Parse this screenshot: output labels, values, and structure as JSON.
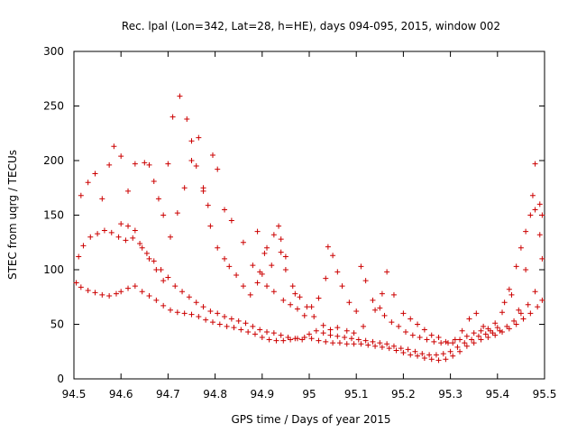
{
  "chart_data": {
    "type": "scatter",
    "title": "Rec. lpal (Lon=342, Lat=28, h=HE), days 094-095, 2015, window 002",
    "xlabel": "GPS time / Days of year 2015",
    "ylabel": "STEC from uqrg / TECUs",
    "xlim": [
      94.5,
      95.5
    ],
    "ylim": [
      0,
      300
    ],
    "xticks": [
      94.5,
      94.6,
      94.7,
      94.8,
      94.9,
      95,
      95.1,
      95.2,
      95.3,
      95.4,
      95.5
    ],
    "xtick_labels": [
      "94.5",
      "94.6",
      "94.7",
      "94.8",
      "94.9",
      "95",
      "95.1",
      "95.2",
      "95.3",
      "95.4",
      "95.5"
    ],
    "yticks": [
      0,
      50,
      100,
      150,
      200,
      250,
      300
    ],
    "ytick_labels": [
      "0",
      "50",
      "100",
      "150",
      "200",
      "250",
      "300"
    ],
    "grid": false,
    "legend": "none",
    "marker": "+",
    "color": "#cc0000",
    "series": [
      {
        "name": "",
        "points": [
          [
            94.505,
            88
          ],
          [
            94.515,
            84
          ],
          [
            94.53,
            81
          ],
          [
            94.545,
            79
          ],
          [
            94.56,
            77
          ],
          [
            94.575,
            76
          ],
          [
            94.59,
            78
          ],
          [
            94.6,
            80
          ],
          [
            94.615,
            83
          ],
          [
            94.63,
            85
          ],
          [
            94.645,
            80
          ],
          [
            94.66,
            76
          ],
          [
            94.675,
            72
          ],
          [
            94.69,
            67
          ],
          [
            94.705,
            63
          ],
          [
            94.72,
            61
          ],
          [
            94.735,
            60
          ],
          [
            94.75,
            59
          ],
          [
            94.765,
            57
          ],
          [
            94.78,
            54
          ],
          [
            94.795,
            52
          ],
          [
            94.81,
            50
          ],
          [
            94.825,
            48
          ],
          [
            94.84,
            47
          ],
          [
            94.855,
            45
          ],
          [
            94.87,
            43
          ],
          [
            94.885,
            41
          ],
          [
            94.9,
            38
          ],
          [
            94.915,
            36
          ],
          [
            94.93,
            35
          ],
          [
            94.945,
            35
          ],
          [
            94.96,
            36
          ],
          [
            94.975,
            37
          ],
          [
            94.99,
            38
          ],
          [
            95.005,
            37
          ],
          [
            95.02,
            35
          ],
          [
            95.035,
            34
          ],
          [
            95.05,
            33
          ],
          [
            95.065,
            33
          ],
          [
            95.08,
            32
          ],
          [
            95.095,
            32
          ],
          [
            95.11,
            32
          ],
          [
            95.125,
            31
          ],
          [
            95.14,
            30
          ],
          [
            95.155,
            29
          ],
          [
            95.17,
            28
          ],
          [
            95.185,
            26
          ],
          [
            95.2,
            24
          ],
          [
            95.215,
            22
          ],
          [
            95.23,
            21
          ],
          [
            95.245,
            19
          ],
          [
            95.26,
            18
          ],
          [
            95.275,
            17
          ],
          [
            95.29,
            18
          ],
          [
            95.305,
            21
          ],
          [
            95.32,
            25
          ],
          [
            95.335,
            30
          ],
          [
            95.35,
            33
          ],
          [
            95.365,
            36
          ],
          [
            95.38,
            38
          ],
          [
            95.395,
            40
          ],
          [
            95.41,
            43
          ],
          [
            95.425,
            46
          ],
          [
            95.44,
            50
          ],
          [
            95.455,
            55
          ],
          [
            95.47,
            60
          ],
          [
            95.485,
            66
          ],
          [
            95.495,
            72
          ],
          [
            94.51,
            112
          ],
          [
            94.52,
            122
          ],
          [
            94.535,
            130
          ],
          [
            94.55,
            133
          ],
          [
            94.565,
            136
          ],
          [
            94.58,
            134
          ],
          [
            94.595,
            130
          ],
          [
            94.61,
            127
          ],
          [
            94.625,
            129
          ],
          [
            94.64,
            124
          ],
          [
            94.655,
            115
          ],
          [
            94.67,
            108
          ],
          [
            94.685,
            100
          ],
          [
            94.7,
            93
          ],
          [
            94.715,
            85
          ],
          [
            94.73,
            80
          ],
          [
            94.745,
            75
          ],
          [
            94.76,
            70
          ],
          [
            94.775,
            66
          ],
          [
            94.79,
            62
          ],
          [
            94.805,
            60
          ],
          [
            94.82,
            57
          ],
          [
            94.835,
            55
          ],
          [
            94.85,
            53
          ],
          [
            94.865,
            51
          ],
          [
            94.88,
            48
          ],
          [
            94.895,
            45
          ],
          [
            94.91,
            43
          ],
          [
            94.925,
            42
          ],
          [
            94.94,
            40
          ],
          [
            94.955,
            38
          ],
          [
            94.97,
            37
          ],
          [
            94.985,
            36
          ],
          [
            95.0,
            41
          ],
          [
            95.015,
            44
          ],
          [
            95.03,
            42
          ],
          [
            95.045,
            40
          ],
          [
            95.06,
            39
          ],
          [
            95.075,
            38
          ],
          [
            95.09,
            37
          ],
          [
            95.105,
            36
          ],
          [
            95.12,
            35
          ],
          [
            95.135,
            34
          ],
          [
            95.15,
            33
          ],
          [
            95.165,
            32
          ],
          [
            95.18,
            30
          ],
          [
            95.195,
            28
          ],
          [
            95.21,
            27
          ],
          [
            95.225,
            25
          ],
          [
            95.24,
            23
          ],
          [
            95.255,
            22
          ],
          [
            95.27,
            22
          ],
          [
            95.285,
            23
          ],
          [
            95.3,
            25
          ],
          [
            95.315,
            29
          ],
          [
            95.33,
            33
          ],
          [
            95.345,
            36
          ],
          [
            95.36,
            39
          ],
          [
            95.375,
            41
          ],
          [
            95.39,
            42
          ],
          [
            95.405,
            44
          ],
          [
            95.42,
            48
          ],
          [
            95.435,
            53
          ],
          [
            95.45,
            60
          ],
          [
            95.465,
            68
          ],
          [
            95.48,
            80
          ],
          [
            94.515,
            168
          ],
          [
            94.53,
            180
          ],
          [
            94.545,
            188
          ],
          [
            94.56,
            165
          ],
          [
            94.575,
            196
          ],
          [
            94.585,
            213
          ],
          [
            94.6,
            204
          ],
          [
            94.615,
            172
          ],
          [
            94.63,
            197
          ],
          [
            94.65,
            198
          ],
          [
            94.66,
            196
          ],
          [
            94.67,
            181
          ],
          [
            94.68,
            165
          ],
          [
            94.69,
            150
          ],
          [
            94.7,
            197
          ],
          [
            94.71,
            240
          ],
          [
            94.725,
            259
          ],
          [
            94.74,
            238
          ],
          [
            94.75,
            218
          ],
          [
            94.765,
            221
          ],
          [
            94.775,
            172
          ],
          [
            94.785,
            159
          ],
          [
            94.795,
            205
          ],
          [
            94.805,
            192
          ],
          [
            94.82,
            155
          ],
          [
            94.835,
            145
          ],
          [
            94.86,
            125
          ],
          [
            94.88,
            104
          ],
          [
            94.895,
            98
          ],
          [
            94.91,
            85
          ],
          [
            94.925,
            80
          ],
          [
            94.945,
            72
          ],
          [
            94.96,
            68
          ],
          [
            94.975,
            64
          ],
          [
            94.6,
            142
          ],
          [
            94.615,
            140
          ],
          [
            94.63,
            136
          ],
          [
            94.645,
            120
          ],
          [
            94.66,
            110
          ],
          [
            94.675,
            100
          ],
          [
            94.69,
            90
          ],
          [
            94.705,
            130
          ],
          [
            94.72,
            152
          ],
          [
            94.735,
            175
          ],
          [
            94.75,
            200
          ],
          [
            94.76,
            195
          ],
          [
            94.775,
            175
          ],
          [
            94.79,
            140
          ],
          [
            94.805,
            120
          ],
          [
            94.82,
            110
          ],
          [
            94.83,
            103
          ],
          [
            94.845,
            95
          ],
          [
            94.86,
            85
          ],
          [
            94.875,
            77
          ],
          [
            94.89,
            88
          ],
          [
            94.9,
            96
          ],
          [
            94.91,
            120
          ],
          [
            94.925,
            132
          ],
          [
            94.94,
            116
          ],
          [
            94.95,
            100
          ],
          [
            94.965,
            85
          ],
          [
            94.98,
            75
          ],
          [
            94.995,
            66
          ],
          [
            95.005,
            66
          ],
          [
            95.02,
            74
          ],
          [
            95.035,
            92
          ],
          [
            95.04,
            121
          ],
          [
            95.05,
            113
          ],
          [
            95.06,
            98
          ],
          [
            95.07,
            85
          ],
          [
            95.085,
            70
          ],
          [
            95.1,
            62
          ],
          [
            95.11,
            103
          ],
          [
            95.12,
            90
          ],
          [
            95.135,
            72
          ],
          [
            95.15,
            65
          ],
          [
            95.16,
            58
          ],
          [
            95.175,
            52
          ],
          [
            95.19,
            48
          ],
          [
            95.205,
            43
          ],
          [
            95.22,
            40
          ],
          [
            95.235,
            38
          ],
          [
            95.25,
            36
          ],
          [
            95.265,
            34
          ],
          [
            95.28,
            33
          ],
          [
            95.295,
            33
          ],
          [
            95.31,
            36
          ],
          [
            95.325,
            44
          ],
          [
            95.34,
            55
          ],
          [
            95.355,
            60
          ],
          [
            95.37,
            48
          ],
          [
            95.385,
            44
          ],
          [
            95.4,
            47
          ],
          [
            95.415,
            70
          ],
          [
            95.43,
            77
          ],
          [
            95.445,
            63
          ],
          [
            95.46,
            100
          ],
          [
            95.475,
            168
          ],
          [
            95.48,
            197
          ],
          [
            95.49,
            160
          ],
          [
            95.495,
            150
          ],
          [
            94.89,
            135
          ],
          [
            94.905,
            115
          ],
          [
            94.92,
            104
          ],
          [
            94.935,
            140
          ],
          [
            94.94,
            128
          ],
          [
            94.95,
            112
          ],
          [
            94.97,
            78
          ],
          [
            94.99,
            58
          ],
          [
            95.01,
            57
          ],
          [
            95.03,
            49
          ],
          [
            95.045,
            45
          ],
          [
            95.06,
            47
          ],
          [
            95.08,
            44
          ],
          [
            95.095,
            42
          ],
          [
            95.115,
            48
          ],
          [
            95.14,
            63
          ],
          [
            95.155,
            78
          ],
          [
            95.165,
            98
          ],
          [
            95.18,
            77
          ],
          [
            95.2,
            60
          ],
          [
            95.215,
            55
          ],
          [
            95.23,
            50
          ],
          [
            95.245,
            45
          ],
          [
            95.26,
            40
          ],
          [
            95.275,
            38
          ],
          [
            95.29,
            34
          ],
          [
            95.305,
            33
          ],
          [
            95.32,
            36
          ],
          [
            95.335,
            39
          ],
          [
            95.35,
            42
          ],
          [
            95.365,
            44
          ],
          [
            95.38,
            46
          ],
          [
            95.395,
            51
          ],
          [
            95.41,
            61
          ],
          [
            95.425,
            82
          ],
          [
            95.44,
            103
          ],
          [
            95.45,
            120
          ],
          [
            95.46,
            135
          ],
          [
            95.47,
            150
          ],
          [
            95.48,
            155
          ],
          [
            95.49,
            132
          ],
          [
            95.495,
            110
          ]
        ]
      }
    ]
  }
}
